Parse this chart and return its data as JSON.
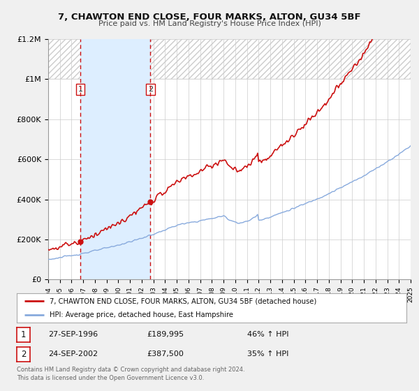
{
  "title": "7, CHAWTON END CLOSE, FOUR MARKS, ALTON, GU34 5BF",
  "subtitle": "Price paid vs. HM Land Registry's House Price Index (HPI)",
  "sale1_date": "27-SEP-1996",
  "sale1_price": 189995,
  "sale1_pct": "46% ↑ HPI",
  "sale1_label": "1",
  "sale1_year": 1996.75,
  "sale2_date": "24-SEP-2002",
  "sale2_price": 387500,
  "sale2_pct": "35% ↑ HPI",
  "sale2_label": "2",
  "sale2_year": 2002.75,
  "hpi_line_color": "#88aadd",
  "price_line_color": "#cc1111",
  "dot_color": "#cc1111",
  "shade_color": "#ddeeff",
  "vline_color": "#cc1111",
  "legend_label_price": "7, CHAWTON END CLOSE, FOUR MARKS, ALTON, GU34 5BF (detached house)",
  "legend_label_hpi": "HPI: Average price, detached house, East Hampshire",
  "footer1": "Contains HM Land Registry data © Crown copyright and database right 2024.",
  "footer2": "This data is licensed under the Open Government Licence v3.0.",
  "xmin": 1994,
  "xmax": 2025,
  "ymin": 0,
  "ymax": 1200000,
  "yticks": [
    0,
    200000,
    400000,
    600000,
    800000,
    1000000,
    1200000
  ],
  "ytick_labels": [
    "£0",
    "£200K",
    "£400K",
    "£600K",
    "£800K",
    "£1M",
    "£1.2M"
  ],
  "background_color": "#f0f0f0",
  "plot_bg_color": "#ffffff",
  "hatch_color": "#cccccc",
  "grid_color": "#cccccc"
}
